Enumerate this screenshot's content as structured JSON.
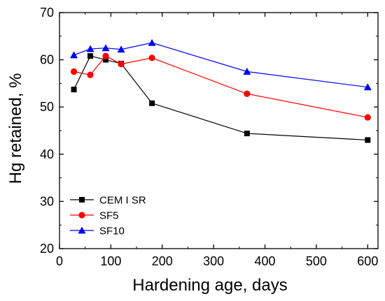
{
  "chart_data": {
    "type": "line",
    "xlabel": "Hardening age, days",
    "ylabel": "Hg retained, %",
    "xlim": [
      0,
      620
    ],
    "ylim": [
      20,
      70
    ],
    "xticks": [
      0,
      100,
      200,
      300,
      400,
      500,
      600
    ],
    "yticks": [
      20,
      30,
      40,
      50,
      60,
      70
    ],
    "grid": false,
    "legend_position": "bottom-left",
    "series": [
      {
        "name": "CEM I SR",
        "color": "#000000",
        "marker": "square",
        "x": [
          28,
          60,
          90,
          120,
          180,
          365,
          600
        ],
        "y": [
          53.7,
          60.8,
          60.0,
          59.2,
          50.8,
          44.4,
          43.0
        ]
      },
      {
        "name": "SF5",
        "color": "#ff0000",
        "marker": "circle",
        "x": [
          28,
          60,
          90,
          120,
          180,
          365,
          600
        ],
        "y": [
          57.5,
          56.8,
          60.8,
          59.1,
          60.4,
          52.8,
          47.8
        ]
      },
      {
        "name": "SF10",
        "color": "#0000ff",
        "marker": "triangle",
        "x": [
          28,
          60,
          90,
          120,
          180,
          365,
          600
        ],
        "y": [
          61.0,
          62.3,
          62.5,
          62.2,
          63.6,
          57.5,
          54.2
        ]
      }
    ]
  }
}
